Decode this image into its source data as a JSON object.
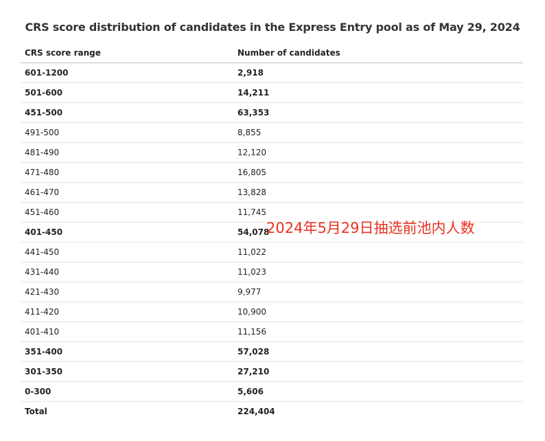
{
  "title": "CRS score distribution of candidates in the Express Entry pool as of May 29, 2024",
  "columns": {
    "range": "CRS score range",
    "count": "Number of candidates"
  },
  "rows": [
    {
      "range": "601-1200",
      "count": "2,918",
      "bold": true
    },
    {
      "range": "501-600",
      "count": "14,211",
      "bold": true
    },
    {
      "range": "451-500",
      "count": "63,353",
      "bold": true
    },
    {
      "range": "491-500",
      "count": "8,855",
      "bold": false
    },
    {
      "range": "481-490",
      "count": "12,120",
      "bold": false
    },
    {
      "range": "471-480",
      "count": "16,805",
      "bold": false
    },
    {
      "range": "461-470",
      "count": "13,828",
      "bold": false
    },
    {
      "range": "451-460",
      "count": "11,745",
      "bold": false
    },
    {
      "range": "401-450",
      "count": "54,078",
      "bold": true
    },
    {
      "range": "441-450",
      "count": "11,022",
      "bold": false
    },
    {
      "range": "431-440",
      "count": "11,023",
      "bold": false
    },
    {
      "range": "421-430",
      "count": "9,977",
      "bold": false
    },
    {
      "range": "411-420",
      "count": "10,900",
      "bold": false
    },
    {
      "range": "401-410",
      "count": "11,156",
      "bold": false
    },
    {
      "range": "351-400",
      "count": "57,028",
      "bold": true
    },
    {
      "range": "301-350",
      "count": "27,210",
      "bold": true
    },
    {
      "range": "0-300",
      "count": "5,606",
      "bold": true
    }
  ],
  "total": {
    "range": "Total",
    "count": "224,404"
  },
  "overlay_text": "2024年5月29日抽选前池内人数",
  "colors": {
    "overlay": "#e8321f"
  }
}
